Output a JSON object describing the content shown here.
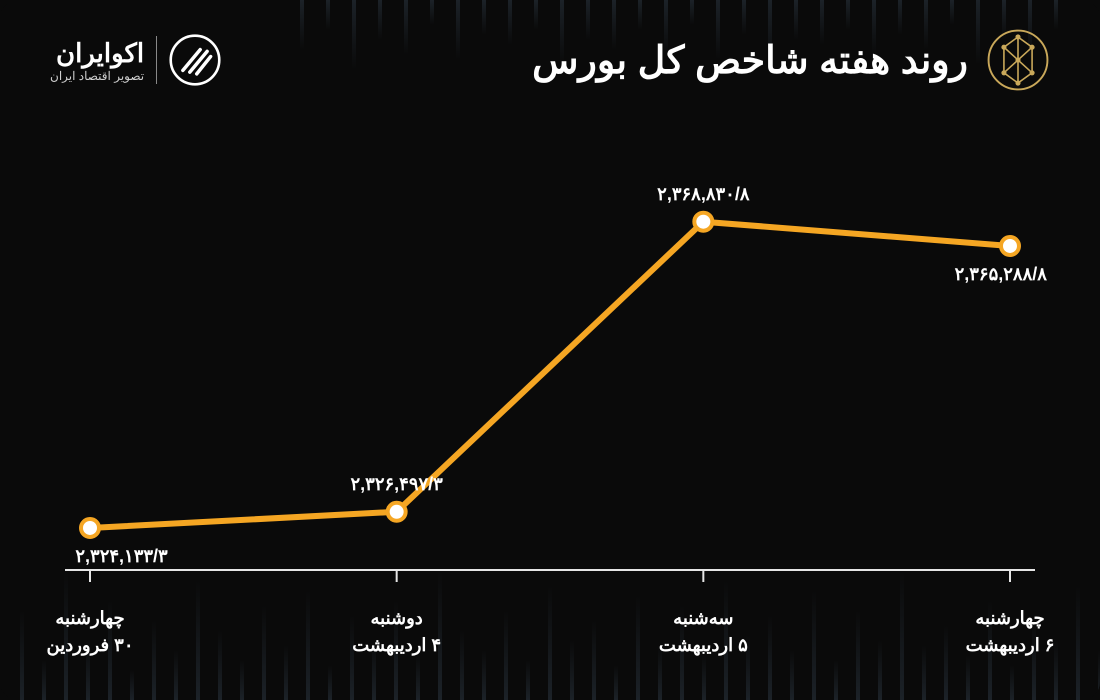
{
  "header": {
    "title": "روند هفته شاخص کل بورس",
    "brand_name": "اکوایران",
    "brand_tagline": "تصویر اقتصاد ایران"
  },
  "chart": {
    "type": "line",
    "background_color": "#0a0a0a",
    "line_color": "#f5a623",
    "line_width": 6,
    "marker_fill": "#ffffff",
    "marker_stroke": "#f5a623",
    "marker_radius": 9,
    "marker_stroke_width": 4,
    "axis_color": "#e6e6e6",
    "label_color": "#ffffff",
    "label_fontsize": 18,
    "xaxis_label_fontsize": 18,
    "ylim": [
      2318000,
      2372000
    ],
    "points": [
      {
        "x_line1": "چهارشنبه",
        "x_line2": "۳۰ فروردین",
        "value": 2324133.3,
        "value_label": "۲,۳۲۴,۱۳۳/۳",
        "label_pos": "below-left"
      },
      {
        "x_line1": "دوشنبه",
        "x_line2": "۴ اردیبهشت",
        "value": 2326497.3,
        "value_label": "۲,۳۲۶,۴۹۷/۳",
        "label_pos": "above"
      },
      {
        "x_line1": "سه‌شنبه",
        "x_line2": "۵ اردیبهشت",
        "value": 2368830.8,
        "value_label": "۲,۳۶۸,۸۳۰/۸",
        "label_pos": "above"
      },
      {
        "x_line1": "چهارشنبه",
        "x_line2": "۶ اردیبهشت",
        "value": 2365288.8,
        "value_label": "۲,۳۶۵,۲۸۸/۸",
        "label_pos": "below-right"
      }
    ]
  },
  "decoration": {
    "bar_color": "rgba(40,50,60,0.6)"
  }
}
